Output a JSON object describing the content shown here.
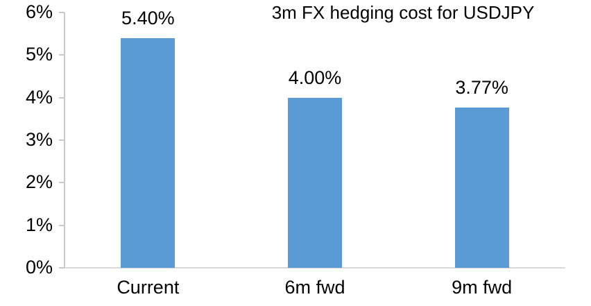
{
  "chart_data": {
    "type": "bar",
    "title": "3m FX hedging cost for USDJPY",
    "categories": [
      "Current",
      "6m fwd",
      "9m fwd"
    ],
    "values": [
      5.4,
      4.0,
      3.77
    ],
    "value_labels": [
      "5.40%",
      "4.00%",
      "3.77%"
    ],
    "xlabel": "",
    "ylabel": "",
    "ylim": [
      0,
      6
    ],
    "yticks": [
      0,
      1,
      2,
      3,
      4,
      5,
      6
    ],
    "ytick_labels": [
      "0%",
      "1%",
      "2%",
      "3%",
      "4%",
      "5%",
      "6%"
    ],
    "grid": false,
    "legend_position": "none",
    "bar_color": "#5B9BD5",
    "text_color": "#000000",
    "y_axis_color": "#C9C9C9",
    "x_axis_color": "#D9D9D9",
    "background_color": "#FFFFFF"
  }
}
